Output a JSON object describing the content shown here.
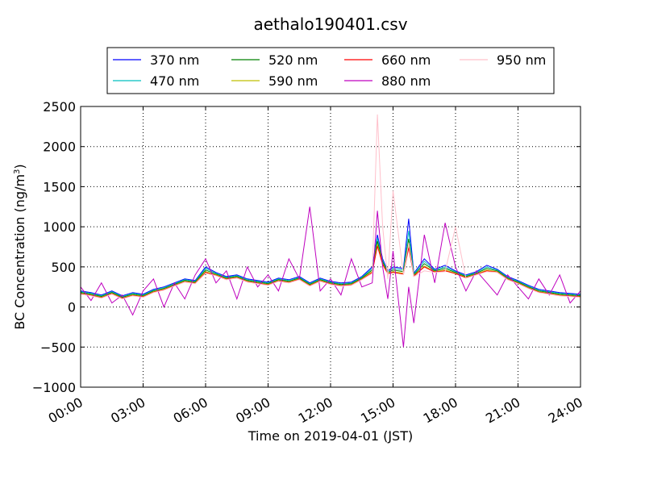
{
  "chart_data": {
    "type": "line",
    "title": "aethalo190401.csv",
    "xlabel": "Time on 2019-04-01 (JST)",
    "ylabel_main": "BC Concentration (ng/m",
    "ylabel_sup": "3",
    "ylabel_close": ")",
    "xlim": [
      0,
      24
    ],
    "ylim": [
      -1000,
      2500
    ],
    "x_ticks": [
      0,
      3,
      6,
      9,
      12,
      15,
      18,
      21,
      24
    ],
    "x_tick_labels": [
      "00:00",
      "03:00",
      "06:00",
      "09:00",
      "12:00",
      "15:00",
      "18:00",
      "21:00",
      "24:00"
    ],
    "y_ticks": [
      -1000,
      -500,
      0,
      500,
      1000,
      1500,
      2000,
      2500
    ],
    "y_tick_labels": [
      "−1000",
      "−500",
      "0",
      "500",
      "1000",
      "1500",
      "2000",
      "2500"
    ],
    "grid": true,
    "legend": "top-center",
    "x": [
      0.0,
      0.5,
      1.0,
      1.5,
      2.0,
      2.5,
      3.0,
      3.5,
      4.0,
      4.5,
      5.0,
      5.5,
      6.0,
      6.5,
      7.0,
      7.5,
      8.0,
      8.5,
      9.0,
      9.5,
      10.0,
      10.5,
      11.0,
      11.5,
      12.0,
      12.5,
      13.0,
      13.5,
      14.0,
      14.25,
      14.5,
      14.75,
      15.0,
      15.5,
      15.75,
      16.0,
      16.5,
      17.0,
      17.5,
      18.0,
      18.5,
      19.0,
      19.5,
      20.0,
      20.5,
      21.0,
      21.5,
      22.0,
      22.5,
      23.0,
      23.5,
      24.0
    ],
    "series": [
      {
        "name": "370 nm",
        "color": "#0000ff",
        "values": [
          200,
          180,
          150,
          200,
          140,
          180,
          160,
          220,
          250,
          300,
          350,
          330,
          500,
          430,
          380,
          400,
          350,
          330,
          310,
          360,
          340,
          380,
          300,
          360,
          320,
          300,
          310,
          380,
          500,
          900,
          600,
          450,
          500,
          480,
          1100,
          420,
          600,
          470,
          520,
          450,
          400,
          440,
          520,
          470,
          380,
          330,
          270,
          220,
          200,
          180,
          170,
          160
        ]
      },
      {
        "name": "470 nm",
        "color": "#00bfbf",
        "values": [
          190,
          170,
          140,
          190,
          130,
          170,
          150,
          210,
          240,
          290,
          340,
          320,
          480,
          420,
          370,
          390,
          340,
          320,
          300,
          350,
          330,
          370,
          290,
          350,
          310,
          290,
          300,
          370,
          480,
          860,
          580,
          440,
          480,
          460,
          950,
          410,
          570,
          460,
          500,
          440,
          390,
          430,
          500,
          460,
          370,
          320,
          260,
          210,
          190,
          170,
          160,
          150
        ]
      },
      {
        "name": "520 nm",
        "color": "#008000",
        "values": [
          180,
          160,
          130,
          180,
          120,
          160,
          140,
          200,
          230,
          280,
          330,
          310,
          460,
          410,
          360,
          380,
          330,
          310,
          290,
          340,
          320,
          360,
          280,
          340,
          300,
          280,
          290,
          360,
          460,
          820,
          560,
          430,
          460,
          440,
          850,
          400,
          540,
          450,
          480,
          430,
          380,
          420,
          480,
          450,
          360,
          310,
          250,
          200,
          180,
          160,
          150,
          140
        ]
      },
      {
        "name": "590 nm",
        "color": "#bfbf00",
        "values": [
          170,
          150,
          120,
          170,
          110,
          150,
          130,
          190,
          220,
          270,
          320,
          300,
          440,
          400,
          350,
          370,
          320,
          300,
          280,
          330,
          310,
          350,
          270,
          330,
          290,
          270,
          280,
          350,
          440,
          780,
          540,
          420,
          440,
          420,
          780,
          390,
          510,
          440,
          460,
          420,
          370,
          410,
          460,
          440,
          350,
          300,
          240,
          190,
          170,
          150,
          140,
          130
        ]
      },
      {
        "name": "660 nm",
        "color": "#ff0000",
        "values": [
          165,
          145,
          115,
          165,
          105,
          145,
          125,
          185,
          215,
          265,
          315,
          295,
          430,
          395,
          345,
          365,
          315,
          295,
          275,
          325,
          305,
          345,
          265,
          325,
          285,
          265,
          275,
          345,
          430,
          760,
          530,
          415,
          430,
          410,
          740,
          385,
          500,
          435,
          450,
          415,
          365,
          405,
          450,
          435,
          345,
          295,
          235,
          185,
          165,
          145,
          135,
          125
        ]
      },
      {
        "name": "880 nm",
        "color": "#bf00bf",
        "values": [
          250,
          80,
          300,
          50,
          150,
          -100,
          200,
          350,
          0,
          300,
          100,
          400,
          600,
          300,
          450,
          100,
          500,
          250,
          400,
          200,
          600,
          350,
          1250,
          200,
          350,
          150,
          600,
          250,
          300,
          1200,
          500,
          100,
          700,
          -500,
          250,
          -200,
          900,
          300,
          1050,
          500,
          200,
          450,
          300,
          150,
          400,
          250,
          100,
          350,
          150,
          400,
          50,
          200
        ]
      },
      {
        "name": "950 nm",
        "color": "#ffc0cb",
        "values": [
          160,
          140,
          110,
          160,
          100,
          140,
          120,
          180,
          210,
          260,
          310,
          290,
          420,
          390,
          340,
          360,
          310,
          290,
          270,
          320,
          300,
          340,
          260,
          320,
          280,
          260,
          270,
          340,
          420,
          2400,
          1000,
          350,
          1450,
          400,
          800,
          380,
          450,
          430,
          440,
          1000,
          360,
          400,
          440,
          430,
          340,
          290,
          230,
          180,
          160,
          140,
          130,
          120
        ]
      }
    ]
  }
}
